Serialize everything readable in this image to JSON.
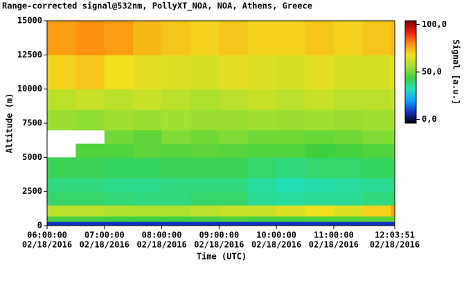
{
  "chart_data": {
    "type": "heatmap",
    "title": "Range-corrected signal@532nm, PollyXT_NOA, NOA, Athens, Greece",
    "x_label": "Time (UTC)",
    "y_label": "Altitude (m)",
    "colorbar_label": "Signal [a.u.]",
    "x_edges": [
      6,
      6.5,
      7,
      7.5,
      8,
      8.5,
      9,
      9.5,
      10,
      10.5,
      11,
      11.5,
      12,
      12.064
    ],
    "y_edges": [
      0,
      300,
      700,
      1500,
      2500,
      3500,
      5000,
      6000,
      7000,
      8500,
      10000,
      12500,
      15000
    ],
    "values": [
      [
        8,
        8,
        8,
        8,
        8,
        8,
        8,
        8,
        8,
        8,
        8,
        8,
        8
      ],
      [
        45,
        45,
        44,
        44,
        44,
        45,
        46,
        45,
        45,
        46,
        46,
        47,
        48
      ],
      [
        60,
        60,
        58,
        58,
        58,
        60,
        62,
        62,
        65,
        68,
        65,
        70,
        78
      ],
      [
        40,
        40,
        39,
        38,
        38,
        40,
        40,
        36,
        35,
        36,
        36,
        38,
        40
      ],
      [
        38,
        38,
        37,
        37,
        38,
        38,
        38,
        35,
        33,
        34,
        35,
        36,
        38
      ],
      [
        42,
        42,
        41,
        41,
        42,
        42,
        42,
        40,
        38,
        40,
        40,
        41,
        42
      ],
      [
        null,
        46,
        46,
        48,
        47,
        48,
        47,
        46,
        46,
        44,
        45,
        46,
        47
      ],
      [
        null,
        null,
        50,
        48,
        52,
        50,
        52,
        50,
        50,
        49,
        50,
        52,
        52
      ],
      [
        55,
        54,
        56,
        55,
        56,
        55,
        55,
        56,
        55,
        56,
        55,
        56,
        56
      ],
      [
        60,
        62,
        60,
        62,
        60,
        58,
        60,
        62,
        60,
        62,
        60,
        60,
        62
      ],
      [
        70,
        72,
        68,
        66,
        65,
        64,
        66,
        65,
        64,
        66,
        64,
        64,
        66
      ],
      [
        78,
        80,
        78,
        74,
        72,
        70,
        72,
        70,
        70,
        72,
        70,
        72,
        74
      ]
    ],
    "xlim": [
      6,
      12.064
    ],
    "xticks": [
      {
        "value": 6,
        "label": "06:00:00",
        "date": "02/18/2016"
      },
      {
        "value": 7,
        "label": "07:00:00",
        "date": "02/18/2016"
      },
      {
        "value": 8,
        "label": "08:00:00",
        "date": "02/18/2016"
      },
      {
        "value": 9,
        "label": "09:00:00",
        "date": "02/18/2016"
      },
      {
        "value": 10,
        "label": "10:00:00",
        "date": "02/18/2016"
      },
      {
        "value": 11,
        "label": "11:00:00",
        "date": "02/18/2016"
      },
      {
        "value": 12.064,
        "label": "12:03:51",
        "date": "02/18/2016"
      }
    ],
    "ylim": [
      0,
      15000
    ],
    "yticks": [
      0,
      2500,
      5000,
      7500,
      10000,
      12500,
      15000
    ],
    "clim": [
      -4,
      104
    ],
    "cticks": [
      {
        "value": 100,
        "label": "100,0"
      },
      {
        "value": 50,
        "label": "50,0"
      },
      {
        "value": 0,
        "label": "0,0"
      }
    ],
    "colormap": [
      "#000000",
      "#1030c0",
      "#10a0ff",
      "#20e0c0",
      "#40d040",
      "#a0e030",
      "#f0e020",
      "#ff9010",
      "#f02010",
      "#800000"
    ]
  }
}
